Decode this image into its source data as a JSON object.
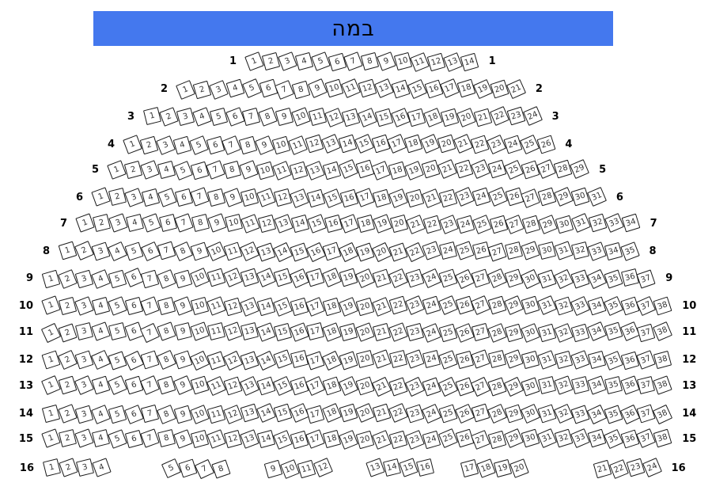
{
  "stage": {
    "label": "במה",
    "color": "#4478EE"
  },
  "rows": [
    {
      "label": "1",
      "groups": [
        [
          1,
          2,
          3,
          4,
          5,
          6,
          7,
          8,
          9,
          10,
          11,
          12,
          13,
          14
        ]
      ]
    },
    {
      "label": "2",
      "groups": [
        [
          1,
          2,
          3,
          4,
          5,
          6,
          7,
          8,
          9,
          10,
          11,
          12,
          13,
          14,
          15,
          16,
          17,
          18,
          19,
          20,
          21
        ]
      ]
    },
    {
      "label": "3",
      "groups": [
        [
          1,
          2,
          3,
          4,
          5,
          6,
          7,
          8,
          9,
          10,
          11,
          12,
          13,
          14,
          15,
          16,
          17,
          18,
          19,
          20,
          21,
          22,
          23,
          24
        ]
      ]
    },
    {
      "label": "4",
      "groups": [
        [
          1,
          2,
          3,
          4,
          5,
          6,
          7,
          8,
          9,
          10,
          11,
          12,
          13,
          14,
          15,
          16,
          17,
          18,
          19,
          20,
          21,
          22,
          23,
          24,
          25,
          26
        ]
      ]
    },
    {
      "label": "5",
      "groups": [
        [
          1,
          2,
          3,
          4,
          5,
          6,
          7,
          8,
          9,
          10,
          11,
          12,
          13,
          14,
          15,
          16,
          17,
          18,
          19,
          20,
          21,
          22,
          23,
          24,
          25,
          26,
          27,
          28,
          29
        ]
      ]
    },
    {
      "label": "6",
      "groups": [
        [
          1,
          2,
          3,
          4,
          5,
          6,
          7,
          8,
          9,
          10,
          11,
          12,
          13,
          14,
          15,
          16,
          17,
          18,
          19,
          20,
          21,
          22,
          23,
          24,
          25,
          26,
          27,
          28,
          29,
          30,
          31
        ]
      ]
    },
    {
      "label": "7",
      "groups": [
        [
          1,
          2,
          3,
          4,
          5,
          6,
          7,
          8,
          9,
          10,
          11,
          12,
          13,
          14,
          15,
          16,
          17,
          18,
          19,
          20,
          21,
          22,
          23,
          24,
          25,
          26,
          27,
          28,
          29,
          30,
          31,
          32,
          33,
          34
        ]
      ]
    },
    {
      "label": "8",
      "groups": [
        [
          1,
          2,
          3,
          4,
          5,
          6,
          7,
          8,
          9,
          10,
          11,
          12,
          13,
          14,
          15,
          16,
          17,
          18,
          19,
          20,
          21,
          22,
          23,
          24,
          25,
          26,
          27,
          28,
          29,
          30,
          31,
          32,
          33,
          34,
          35
        ]
      ]
    },
    {
      "label": "9",
      "groups": [
        [
          1,
          2,
          3,
          4,
          5,
          6,
          7,
          8,
          9,
          10,
          11,
          12,
          13,
          14,
          15,
          16,
          17,
          18,
          19,
          20,
          21,
          22,
          23,
          24,
          25,
          26,
          27,
          28,
          29,
          30,
          31,
          32,
          33,
          34,
          35,
          36,
          37
        ]
      ]
    },
    {
      "label": "10",
      "groups": [
        [
          1,
          2,
          3,
          4,
          5,
          6,
          7,
          8,
          9,
          10,
          11,
          12,
          13,
          14,
          15,
          16,
          17,
          18,
          19,
          20,
          21,
          22,
          23,
          24,
          25,
          26,
          27,
          28,
          29,
          30,
          31,
          32,
          33,
          34,
          35,
          36,
          37,
          38
        ]
      ]
    },
    {
      "label": "11",
      "groups": [
        [
          1,
          2,
          3,
          4,
          5,
          6,
          7,
          8,
          9,
          10,
          11,
          12,
          13,
          14,
          15,
          16,
          17,
          18,
          19,
          20,
          21,
          22,
          23,
          24,
          25,
          26,
          27,
          28,
          29,
          30,
          31,
          32,
          33,
          34,
          35,
          36,
          37,
          38
        ]
      ]
    },
    {
      "label": "12",
      "groups": [
        [
          1,
          2,
          3,
          4,
          5,
          6,
          7,
          8,
          9,
          10,
          11,
          12,
          13,
          14,
          15,
          16,
          17,
          18,
          19,
          20,
          21,
          22,
          23,
          24,
          25,
          26,
          27,
          28,
          29,
          30,
          31,
          32,
          33,
          34,
          35,
          36,
          37,
          38
        ]
      ]
    },
    {
      "label": "13",
      "groups": [
        [
          1,
          2,
          3,
          4,
          5,
          6,
          7,
          8,
          9,
          10,
          11,
          12,
          13,
          14,
          15,
          16,
          17,
          18,
          19,
          20,
          21,
          22,
          23,
          24,
          25,
          26,
          27,
          28,
          29,
          30,
          31,
          32,
          33,
          34,
          35,
          36,
          37,
          38
        ]
      ]
    },
    {
      "label": "14",
      "groups": [
        [
          1,
          2,
          3,
          4,
          5,
          6,
          7,
          8,
          9,
          10,
          11,
          12,
          13,
          14,
          15,
          16,
          17,
          18,
          19,
          20,
          21,
          22,
          23,
          24,
          25,
          26,
          27,
          28,
          29,
          30,
          31,
          32,
          33,
          34,
          35,
          36,
          37,
          38
        ]
      ]
    },
    {
      "label": "15",
      "groups": [
        [
          1,
          2,
          3,
          4,
          5,
          6,
          7,
          8,
          9,
          10,
          11,
          12,
          13,
          14,
          15,
          16,
          17,
          18,
          19,
          20,
          21,
          22,
          23,
          24,
          25,
          26,
          27,
          28,
          29,
          30,
          31,
          32,
          33,
          34,
          35,
          36,
          37,
          38
        ]
      ]
    },
    {
      "label": "16",
      "groups": [
        [
          1,
          2,
          3,
          4
        ],
        [
          5,
          6,
          7,
          8
        ],
        [
          9,
          10,
          11,
          12
        ],
        [
          13,
          14,
          15,
          16
        ],
        [
          17,
          18,
          19,
          20
        ],
        [
          21,
          22,
          23,
          24
        ]
      ]
    }
  ]
}
